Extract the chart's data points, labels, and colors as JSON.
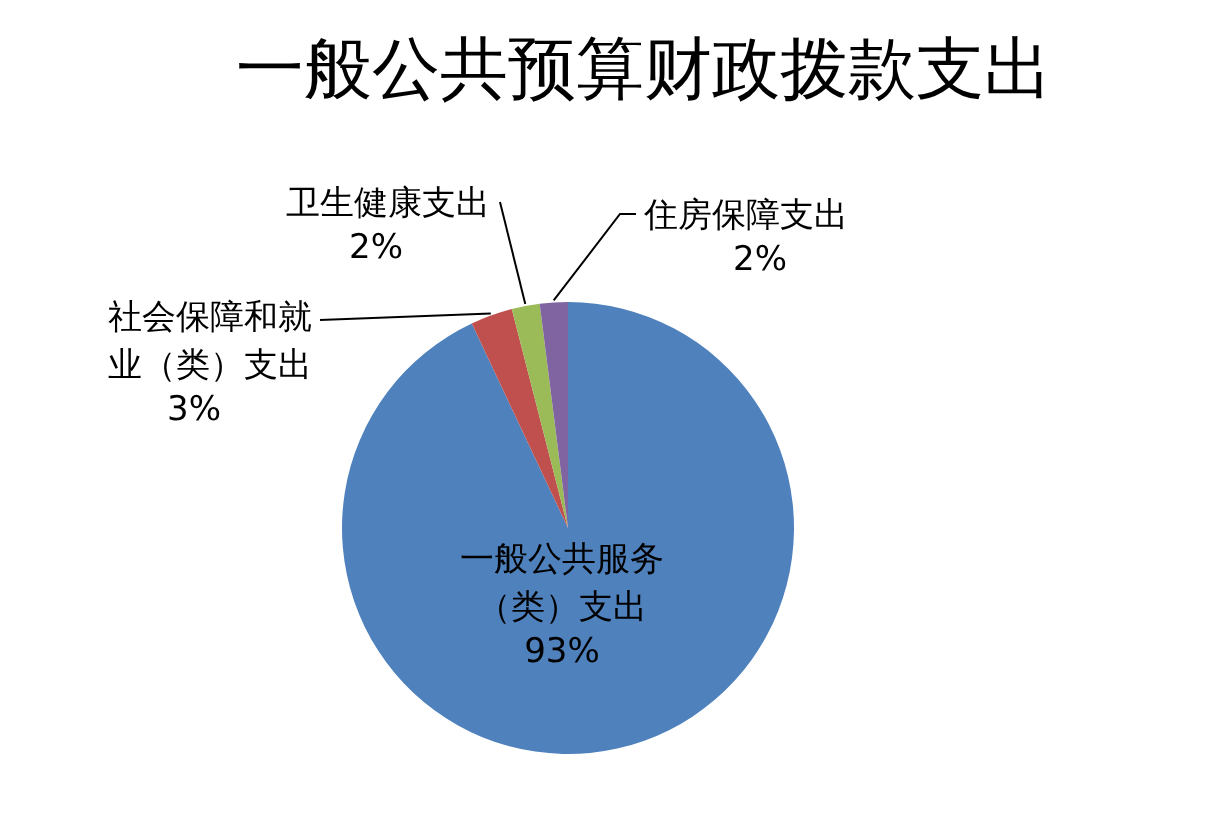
{
  "chart_data": {
    "type": "pie",
    "title": "一般公共预算财政拨款支出",
    "categories": [
      "一般公共服务（类）支出",
      "社会保障和就业（类）支出",
      "卫生健康支出",
      "住房保障支出"
    ],
    "values": [
      93,
      3,
      2,
      2
    ],
    "value_labels": [
      "93%",
      "3%",
      "2%",
      "2%"
    ],
    "colors": [
      "#4f81bd",
      "#c0504d",
      "#9bbb59",
      "#8064a2"
    ]
  }
}
